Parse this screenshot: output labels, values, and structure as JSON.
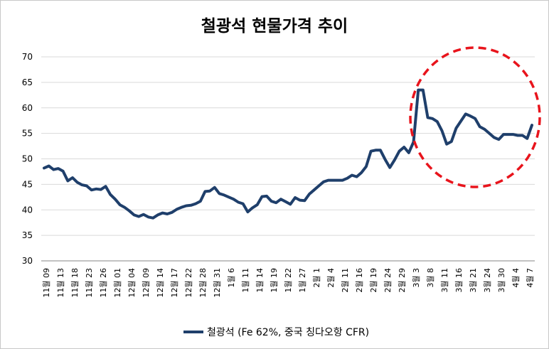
{
  "chart_data": {
    "type": "line",
    "title": "철광석 현물가격 추이",
    "xlabel": "",
    "ylabel": "",
    "ylim": [
      30,
      70
    ],
    "yticks": [
      30,
      35,
      40,
      45,
      50,
      55,
      60,
      65,
      70
    ],
    "grid": true,
    "legend": "bottom",
    "series_color": "#1f3f6b",
    "annotation_color": "#e8141c",
    "annotation": "dashed-circle-highlight",
    "x_tick_labels": [
      "11월 09",
      "11월 13",
      "11월 18",
      "11월 23",
      "11월 26",
      "12월 01",
      "12월 04",
      "12월 09",
      "12월 14",
      "12월 17",
      "12월 22",
      "12월 28",
      "12월 31",
      "1월 6",
      "1월 11",
      "1월 14",
      "1월 19",
      "1월 22",
      "1월 27",
      "2월 1",
      "2월 4",
      "2월 11",
      "2월 16",
      "2월 19",
      "2월 24",
      "2월 29",
      "3월 3",
      "3월 8",
      "3월 11",
      "3월 16",
      "3월 21",
      "3월 24",
      "3월 30",
      "4월 4",
      "4월 7"
    ],
    "series": [
      {
        "name": "철광석 (Fe 62%, 중국 칭다오항 CFR)",
        "values": [
          48.2,
          48.6,
          47.9,
          48.1,
          47.6,
          45.7,
          46.3,
          45.4,
          44.9,
          44.7,
          43.9,
          44.1,
          44.0,
          44.6,
          43.0,
          42.1,
          41.0,
          40.5,
          39.8,
          39.0,
          38.7,
          39.1,
          38.6,
          38.4,
          39.0,
          39.4,
          39.2,
          39.5,
          40.1,
          40.5,
          40.8,
          40.9,
          41.2,
          41.7,
          43.6,
          43.7,
          44.4,
          43.2,
          42.9,
          42.5,
          42.1,
          41.5,
          41.2,
          39.6,
          40.4,
          41.0,
          42.6,
          42.7,
          41.7,
          41.4,
          42.1,
          41.6,
          41.1,
          42.4,
          41.9,
          41.8,
          43.1,
          43.9,
          44.7,
          45.5,
          45.8,
          45.8,
          45.8,
          45.8,
          46.2,
          46.8,
          46.5,
          47.3,
          48.5,
          51.5,
          51.7,
          51.7,
          49.9,
          48.3,
          49.8,
          51.5,
          52.3,
          51.2,
          53.3,
          63.5,
          63.5,
          58.1,
          57.9,
          57.3,
          55.5,
          52.9,
          53.4,
          56.0,
          57.4,
          58.8,
          58.4,
          57.9,
          56.3,
          55.8,
          55.0,
          54.2,
          53.8,
          54.8,
          54.8,
          54.8,
          54.6,
          54.6,
          54.0,
          56.6
        ]
      }
    ]
  }
}
